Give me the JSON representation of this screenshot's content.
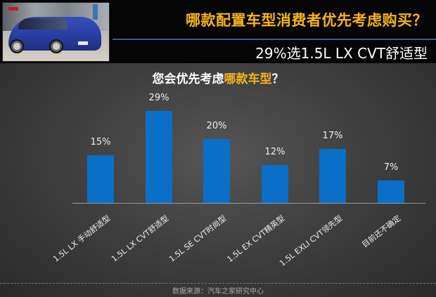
{
  "header": {
    "title": "哪款配置车型消费者优先考虑购买？",
    "subtitle": "29%选1.5L LX CVT舒适型",
    "accent_color": "#f5b41a",
    "rule_color": "#2f5f92"
  },
  "photo": {
    "description": "blue-hatchback-car-photo"
  },
  "question": {
    "prefix": "您会优先考虑",
    "highlight": "哪款车型",
    "suffix": "？"
  },
  "chart_data": {
    "type": "bar",
    "title": "您会优先考虑哪款车型？",
    "categories": [
      "1.5L LX 手动舒适型",
      "1.5L LX CVT舒适型",
      "1.5L SE CVT时尚型",
      "1.5L EX CVT精英型",
      "1.5L EXLI CVT领先型",
      "目前还不确定"
    ],
    "values": [
      15,
      29,
      20,
      12,
      17,
      7
    ],
    "value_labels": [
      "15%",
      "29%",
      "20%",
      "12%",
      "17%",
      "7%"
    ],
    "xlabel": "",
    "ylabel": "",
    "ylim": [
      0,
      30
    ],
    "grid": false,
    "legend": "none",
    "bar_color": "#0a6fc6"
  },
  "footer": {
    "source": "数据来源：汽车之家研究中心"
  }
}
